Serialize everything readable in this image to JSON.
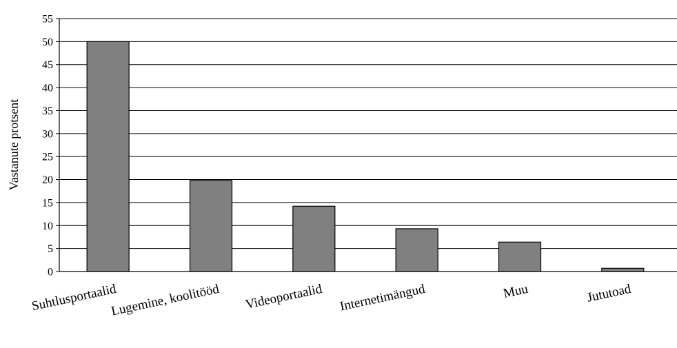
{
  "chart_data": {
    "type": "bar",
    "title": "",
    "xlabel": "",
    "ylabel": "Vastanute  protsent",
    "ylim": [
      0,
      55
    ],
    "yticks": [
      0,
      5,
      10,
      15,
      20,
      25,
      30,
      35,
      40,
      45,
      50,
      55
    ],
    "grid": true,
    "categories": [
      "Suhtlusportaalid",
      "Lugemine, koolitööd",
      "Videoportaalid",
      "Internetimängud",
      "Muu",
      "Jututoad"
    ],
    "values": [
      50,
      19.8,
      14.2,
      9.3,
      6.4,
      0.7
    ],
    "colors": {
      "bar": "#808080",
      "bar_stroke": "#000000",
      "grid": "#000000"
    }
  }
}
